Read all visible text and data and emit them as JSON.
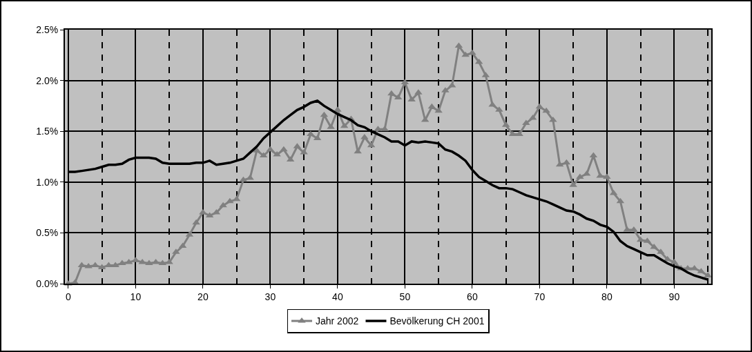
{
  "chart_data": {
    "type": "line",
    "x": [
      0,
      1,
      2,
      3,
      4,
      5,
      6,
      7,
      8,
      9,
      10,
      11,
      12,
      13,
      14,
      15,
      16,
      17,
      18,
      19,
      20,
      21,
      22,
      23,
      24,
      25,
      26,
      27,
      28,
      29,
      30,
      31,
      32,
      33,
      34,
      35,
      36,
      37,
      38,
      39,
      40,
      41,
      42,
      43,
      44,
      45,
      46,
      47,
      48,
      49,
      50,
      51,
      52,
      53,
      54,
      55,
      56,
      57,
      58,
      59,
      60,
      61,
      62,
      63,
      64,
      65,
      66,
      67,
      68,
      69,
      70,
      71,
      72,
      73,
      74,
      75,
      76,
      77,
      78,
      79,
      80,
      81,
      82,
      83,
      84,
      85,
      86,
      87,
      88,
      89,
      90,
      91,
      92,
      93,
      94,
      95
    ],
    "series": [
      {
        "name": "Jahr 2002",
        "color": "#808080",
        "marker": "triangle",
        "values": [
          0.0,
          0.01,
          0.18,
          0.17,
          0.18,
          0.16,
          0.18,
          0.18,
          0.2,
          0.21,
          0.23,
          0.21,
          0.2,
          0.21,
          0.2,
          0.21,
          0.31,
          0.37,
          0.48,
          0.6,
          0.7,
          0.67,
          0.7,
          0.77,
          0.81,
          0.83,
          1.02,
          1.04,
          1.31,
          1.26,
          1.32,
          1.27,
          1.32,
          1.22,
          1.35,
          1.29,
          1.47,
          1.43,
          1.66,
          1.54,
          1.71,
          1.55,
          1.62,
          1.3,
          1.44,
          1.36,
          1.52,
          1.52,
          1.87,
          1.83,
          1.98,
          1.81,
          1.88,
          1.61,
          1.74,
          1.7,
          1.9,
          1.95,
          2.34,
          2.25,
          2.27,
          2.18,
          2.05,
          1.76,
          1.71,
          1.56,
          1.47,
          1.47,
          1.58,
          1.63,
          1.74,
          1.7,
          1.61,
          1.17,
          1.19,
          0.97,
          1.05,
          1.08,
          1.26,
          1.06,
          1.05,
          0.89,
          0.81,
          0.53,
          0.53,
          0.43,
          0.42,
          0.36,
          0.31,
          0.24,
          0.21,
          0.15,
          0.15,
          0.15,
          0.12,
          0.08
        ]
      },
      {
        "name": "Bevölkerung CH 2001",
        "color": "#000000",
        "marker": "none",
        "values": [
          1.1,
          1.1,
          1.11,
          1.12,
          1.13,
          1.15,
          1.17,
          1.17,
          1.18,
          1.22,
          1.24,
          1.24,
          1.24,
          1.23,
          1.19,
          1.18,
          1.18,
          1.18,
          1.18,
          1.19,
          1.19,
          1.21,
          1.17,
          1.18,
          1.19,
          1.21,
          1.23,
          1.29,
          1.35,
          1.43,
          1.49,
          1.55,
          1.61,
          1.66,
          1.71,
          1.74,
          1.78,
          1.8,
          1.75,
          1.71,
          1.67,
          1.64,
          1.61,
          1.56,
          1.54,
          1.5,
          1.47,
          1.44,
          1.4,
          1.4,
          1.36,
          1.4,
          1.39,
          1.4,
          1.39,
          1.38,
          1.32,
          1.3,
          1.26,
          1.21,
          1.12,
          1.05,
          1.01,
          0.97,
          0.94,
          0.94,
          0.93,
          0.9,
          0.87,
          0.85,
          0.83,
          0.81,
          0.78,
          0.75,
          0.72,
          0.71,
          0.68,
          0.64,
          0.62,
          0.58,
          0.56,
          0.51,
          0.42,
          0.37,
          0.34,
          0.31,
          0.28,
          0.28,
          0.24,
          0.2,
          0.17,
          0.15,
          0.11,
          0.08,
          0.06,
          0.04
        ]
      }
    ],
    "xlim": [
      -0.5,
      95.5
    ],
    "xticks": [
      0,
      {
        "value": 5,
        "label": null
      },
      10,
      {
        "value": 15,
        "label": null
      },
      20,
      {
        "value": 25,
        "label": null
      },
      30,
      {
        "value": 35,
        "label": null
      },
      40,
      {
        "value": 45,
        "label": null
      },
      50,
      {
        "value": 55,
        "label": null
      },
      60,
      {
        "value": 65,
        "label": null
      },
      70,
      {
        "value": 75,
        "label": null
      },
      80,
      {
        "value": 85,
        "label": null
      },
      90,
      {
        "value": 95,
        "label": null
      }
    ],
    "ylim": [
      0,
      2.5
    ],
    "yticks": [
      {
        "value": 0,
        "label": "0.0%"
      },
      {
        "value": 0.5,
        "label": "0.5%"
      },
      {
        "value": 1,
        "label": "1.0%"
      },
      {
        "value": 1.5,
        "label": "1.5%"
      },
      {
        "value": 2,
        "label": "2.0%"
      },
      {
        "value": 2.5,
        "label": "2.5%"
      }
    ],
    "grid": true,
    "legend": "bottom",
    "line_style": "solid"
  }
}
